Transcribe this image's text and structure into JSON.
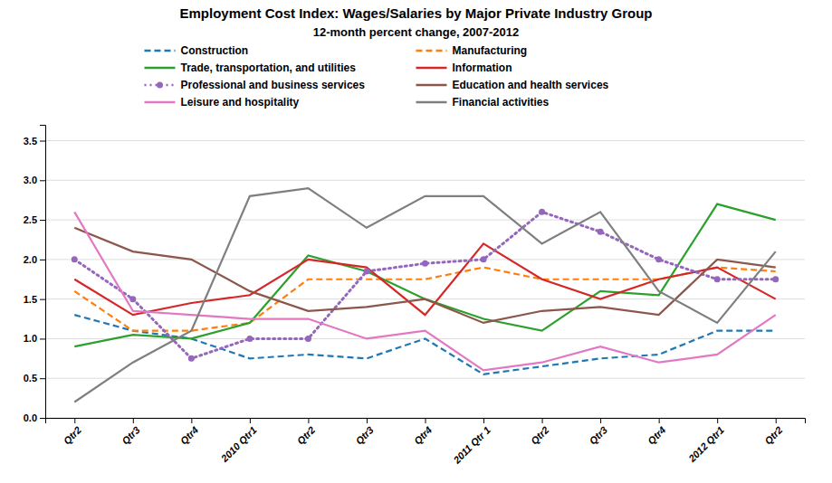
{
  "chart_data": {
    "type": "line",
    "title": "Employment Cost Index:  Wages/Salaries by Major Private Industry Group",
    "subtitle": "12-month percent change, 2007-2012",
    "categories": [
      "Qtr2",
      "Qtr3",
      "Qtr4",
      "2010 Qtr1",
      "Qtr2",
      "Qtr3",
      "Qtr4",
      "2011 Qtr 1",
      "Qtr2",
      "Qtr3",
      "Qtr4",
      "2012 Qtr1",
      "Qtr2"
    ],
    "ylim": [
      0.0,
      3.7
    ],
    "yticks": [
      {
        "value": 0.0,
        "label": "0.0"
      },
      0.5,
      {
        "value": 1.0,
        "label": "1.0"
      },
      1.5,
      {
        "value": 2.0,
        "label": "2.0"
      },
      2.5,
      {
        "value": 3.0,
        "label": "3.0"
      },
      3.5
    ],
    "grid": true,
    "legend": "top",
    "series": [
      {
        "name": "Construction",
        "line_style": "dashed",
        "values": [
          1.3,
          1.1,
          1.0,
          0.75,
          0.8,
          0.75,
          1.0,
          0.55,
          0.65,
          0.75,
          0.8,
          1.1,
          1.1
        ]
      },
      {
        "name": "Manufacturing",
        "line_style": "dashed",
        "values": [
          1.6,
          1.1,
          1.1,
          1.2,
          1.75,
          1.75,
          1.75,
          1.9,
          1.75,
          1.75,
          1.75,
          1.9,
          1.85
        ]
      },
      {
        "name": "Trade, transportation, and utilities",
        "line_style": "solid",
        "values": [
          0.9,
          1.05,
          1.0,
          1.2,
          2.05,
          1.85,
          1.5,
          1.25,
          1.1,
          1.6,
          1.55,
          2.7,
          2.5
        ]
      },
      {
        "name": "Information",
        "line_style": "solid",
        "values": [
          1.75,
          1.3,
          1.45,
          1.55,
          2.0,
          1.9,
          1.3,
          2.2,
          1.75,
          1.5,
          1.75,
          1.9,
          1.5
        ]
      },
      {
        "name": "Professional and business services",
        "line_style": "dotted",
        "marker": "circle",
        "values": [
          2.0,
          1.5,
          0.75,
          1.0,
          1.0,
          1.85,
          1.95,
          2.0,
          2.6,
          2.35,
          2.0,
          1.75,
          1.75
        ]
      },
      {
        "name": "Education and health services",
        "line_style": "solid",
        "values": [
          2.4,
          2.1,
          2.0,
          1.6,
          1.35,
          1.4,
          1.5,
          1.2,
          1.35,
          1.4,
          1.3,
          2.0,
          1.9
        ]
      },
      {
        "name": "Leisure and hospitality",
        "line_style": "solid",
        "values": [
          2.6,
          1.35,
          1.3,
          1.25,
          1.25,
          1.0,
          1.1,
          0.6,
          0.7,
          0.9,
          0.7,
          0.8,
          1.3
        ]
      },
      {
        "name": "Financial activities",
        "line_style": "solid",
        "values": [
          0.2,
          0.7,
          1.1,
          2.8,
          2.9,
          2.4,
          2.8,
          2.8,
          2.2,
          2.6,
          1.6,
          1.2,
          2.1
        ]
      }
    ]
  }
}
